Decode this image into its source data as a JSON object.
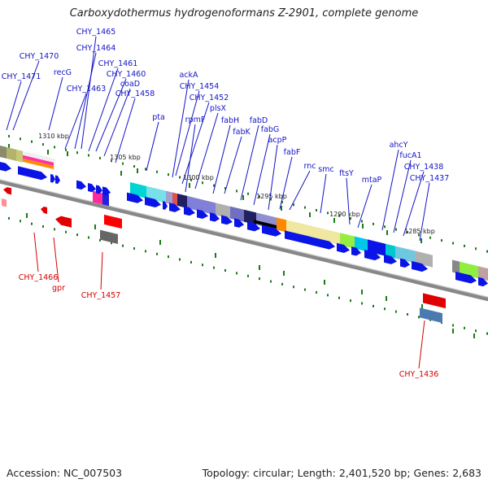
{
  "title": "Carboxydothermus hydrogenoformans Z-2901, complete genome",
  "footer": {
    "accession": "Accession: NC_007503",
    "summary": "Topology: circular; Length: 2,401,520 bp; Genes: 2,683"
  },
  "colors": {
    "forward_label": "#1414c8",
    "reverse_label": "#d40000",
    "gene_blue": "#0a14e6",
    "gene_red": "#e00000",
    "backbone": "#808080",
    "tick": "#1a7a1a"
  },
  "scale_labels": [
    "1310 kbp",
    "1305 kbp",
    "1300 kbp",
    "1295 kbp",
    "1290 kbp",
    "1285 kbp"
  ],
  "forward_genes": [
    "CHY_1465",
    "CHY_1464",
    "CHY_1470",
    "CHY_1471",
    "recG",
    "CHY_1461",
    "CHY_1460",
    "coaD",
    "CHY_1463",
    "CHY_1458",
    "ackA",
    "CHY_1454",
    "CHY_1452",
    "plsX",
    "pta",
    "rpmF",
    "fabH",
    "fabD",
    "fabK",
    "fabG",
    "acpP",
    "fabF",
    "rnc",
    "smc",
    "ftsY",
    "mtaP",
    "ahcY",
    "fucA1",
    "CHY_1438",
    "CHY_1437"
  ],
  "reverse_genes": [
    "CHY_1466",
    "gpr",
    "CHY_1457",
    "CHY_1436"
  ]
}
